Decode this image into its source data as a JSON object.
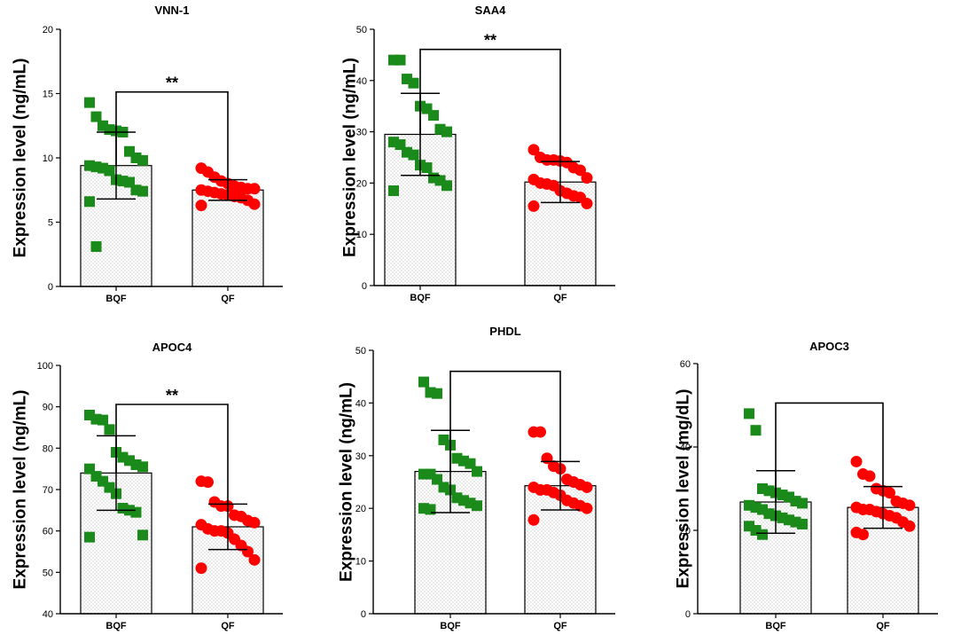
{
  "figure": {
    "description_free": true
  },
  "chart_data": [
    {
      "type": "bar",
      "title": "VNN-1",
      "ylabel": "Expression level (ng/mL)",
      "xlabel": "",
      "categories": [
        "BQF",
        "QF"
      ],
      "values": [
        9.4,
        7.5
      ],
      "sd": [
        2.6,
        0.8
      ],
      "ylim": [
        0,
        20
      ],
      "yticks": [
        0,
        5,
        10,
        15,
        20
      ],
      "significance": "**",
      "colors": [
        "#1a8a1a",
        "#ff0000"
      ],
      "points": [
        [
          14.3,
          13.2,
          12.5,
          12.2,
          12.1,
          12.0,
          10.5,
          10.0,
          9.8,
          9.4,
          9.3,
          9.2,
          9.0,
          8.3,
          8.2,
          8.1,
          7.5,
          7.4,
          6.6,
          3.1
        ],
        [
          9.2,
          8.9,
          8.5,
          8.2,
          8.0,
          7.8,
          7.7,
          7.6,
          7.6,
          7.5,
          7.4,
          7.3,
          7.2,
          7.1,
          7.0,
          6.9,
          6.7,
          6.4,
          6.3
        ]
      ]
    },
    {
      "type": "bar",
      "title": "SAA4",
      "ylabel": "Expression level (ng/mL)",
      "xlabel": "",
      "categories": [
        "BQF",
        "QF"
      ],
      "values": [
        29.5,
        20.2
      ],
      "sd": [
        8.0,
        4.0
      ],
      "ylim": [
        0,
        50
      ],
      "yticks": [
        0,
        10,
        20,
        30,
        40,
        50
      ],
      "significance": "**",
      "colors": [
        "#1a8a1a",
        "#ff0000"
      ],
      "points": [
        [
          44.0,
          44.0,
          40.3,
          39.5,
          35.0,
          34.5,
          33.2,
          30.5,
          30.0,
          28.0,
          27.5,
          26.0,
          25.5,
          23.5,
          23.0,
          21.0,
          20.5,
          19.5,
          18.5
        ],
        [
          26.5,
          25.0,
          24.5,
          24.5,
          24.3,
          24.0,
          23.0,
          22.5,
          21.0,
          20.7,
          20.0,
          19.8,
          19.5,
          18.5,
          18.0,
          17.5,
          17.2,
          16.0,
          15.5
        ]
      ]
    },
    {
      "type": "bar",
      "title": "APOC4",
      "ylabel": "Expression level (ng/mL)",
      "xlabel": "",
      "categories": [
        "BQF",
        "QF"
      ],
      "values": [
        74.0,
        61.0
      ],
      "sd": [
        9.0,
        5.5
      ],
      "ylim": [
        40,
        100
      ],
      "yticks": [
        40,
        50,
        60,
        70,
        80,
        90,
        100
      ],
      "significance": "**",
      "colors": [
        "#1a8a1a",
        "#ff0000"
      ],
      "points": [
        [
          88.0,
          87.0,
          86.8,
          84.5,
          79.0,
          77.8,
          77.0,
          76.0,
          75.5,
          75.0,
          73.2,
          72.0,
          70.5,
          69.0,
          65.5,
          65.0,
          64.5,
          59.0,
          58.5
        ],
        [
          72.0,
          71.8,
          67.0,
          66.0,
          66.0,
          63.8,
          63.5,
          62.5,
          62.0,
          61.5,
          60.5,
          60.0,
          60.0,
          59.5,
          58.0,
          56.5,
          55.0,
          53.0,
          51.0
        ]
      ]
    },
    {
      "type": "bar",
      "title": "PHDL",
      "ylabel": "Expression level (ng/mL)",
      "xlabel": "",
      "categories": [
        "BQF",
        "QF"
      ],
      "values": [
        27.0,
        24.3
      ],
      "sd": [
        7.8,
        4.6
      ],
      "ylim": [
        0,
        50
      ],
      "yticks": [
        0,
        10,
        20,
        30,
        40,
        50
      ],
      "significance": "",
      "colors": [
        "#1a8a1a",
        "#ff0000"
      ],
      "points": [
        [
          44.0,
          42.0,
          41.8,
          33.0,
          32.0,
          29.5,
          29.0,
          28.5,
          27.0,
          26.5,
          26.5,
          25.5,
          24.0,
          23.5,
          22.0,
          21.5,
          21.0,
          20.5,
          20.0,
          19.8
        ],
        [
          34.5,
          34.5,
          29.5,
          28.0,
          27.5,
          25.5,
          25.0,
          24.5,
          24.0,
          24.0,
          23.5,
          23.5,
          23.0,
          22.5,
          21.5,
          21.0,
          20.5,
          20.0,
          17.8
        ]
      ]
    },
    {
      "type": "bar",
      "title": "APOC3",
      "ylabel": "Expression level (mg/dL)",
      "xlabel": "",
      "categories": [
        "BQF",
        "QF"
      ],
      "values": [
        26.8,
        25.5
      ],
      "sd": [
        7.5,
        5.0
      ],
      "ylim": [
        0,
        60
      ],
      "yticks": [
        0,
        20,
        40,
        60
      ],
      "significance": "",
      "colors": [
        "#1a8a1a",
        "#ff0000"
      ],
      "points": [
        [
          48.0,
          44.0,
          30.0,
          29.5,
          29.0,
          28.5,
          28.0,
          27.0,
          26.5,
          26.0,
          25.5,
          25.0,
          24.0,
          23.5,
          23.0,
          22.5,
          22.0,
          21.5,
          21.0,
          20.0,
          19.0
        ],
        [
          36.5,
          33.5,
          33.0,
          30.0,
          29.5,
          29.0,
          27.0,
          26.5,
          26.0,
          25.5,
          25.0,
          25.0,
          24.5,
          24.0,
          23.5,
          23.0,
          22.0,
          21.0,
          19.5,
          19.0
        ]
      ]
    }
  ]
}
